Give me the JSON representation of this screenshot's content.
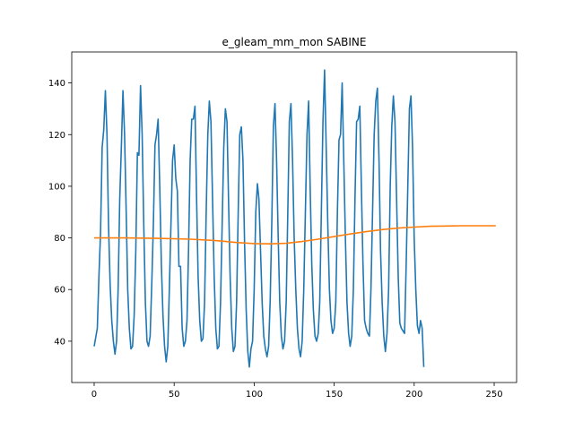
{
  "chart_data": {
    "type": "line",
    "title": "e_gleam_mm_mon SABINE",
    "xlabel": "",
    "ylabel": "",
    "xlim": [
      -14,
      264
    ],
    "ylim": [
      24,
      152
    ],
    "grid": false,
    "legend": "none",
    "x_ticks": [
      0,
      50,
      100,
      150,
      200,
      250
    ],
    "y_ticks": [
      40,
      60,
      80,
      100,
      120,
      140
    ],
    "series": [
      {
        "color": "#1f77b4",
        "points": [
          [
            0,
            38
          ],
          [
            2,
            45
          ],
          [
            3,
            65
          ],
          [
            4,
            82
          ],
          [
            5,
            115
          ],
          [
            6,
            122
          ],
          [
            7,
            137
          ],
          [
            8,
            120
          ],
          [
            9,
            85
          ],
          [
            10,
            62
          ],
          [
            11,
            48
          ],
          [
            12,
            40
          ],
          [
            13,
            35
          ],
          [
            14,
            40
          ],
          [
            15,
            60
          ],
          [
            16,
            95
          ],
          [
            17,
            115
          ],
          [
            18,
            137
          ],
          [
            19,
            120
          ],
          [
            20,
            90
          ],
          [
            21,
            60
          ],
          [
            22,
            45
          ],
          [
            23,
            37
          ],
          [
            24,
            38
          ],
          [
            25,
            50
          ],
          [
            26,
            75
          ],
          [
            27,
            113
          ],
          [
            28,
            112
          ],
          [
            29,
            139
          ],
          [
            30,
            120
          ],
          [
            31,
            85
          ],
          [
            32,
            55
          ],
          [
            33,
            40
          ],
          [
            34,
            38
          ],
          [
            35,
            42
          ],
          [
            36,
            62
          ],
          [
            37,
            85
          ],
          [
            38,
            116
          ],
          [
            39,
            120
          ],
          [
            40,
            126
          ],
          [
            41,
            100
          ],
          [
            42,
            70
          ],
          [
            43,
            50
          ],
          [
            44,
            38
          ],
          [
            45,
            32
          ],
          [
            46,
            38
          ],
          [
            47,
            60
          ],
          [
            48,
            85
          ],
          [
            49,
            110
          ],
          [
            50,
            116
          ],
          [
            51,
            103
          ],
          [
            52,
            98
          ],
          [
            53,
            69
          ],
          [
            54,
            69
          ],
          [
            55,
            45
          ],
          [
            56,
            38
          ],
          [
            57,
            40
          ],
          [
            58,
            48
          ],
          [
            59,
            75
          ],
          [
            60,
            110
          ],
          [
            61,
            126
          ],
          [
            62,
            126
          ],
          [
            63,
            131
          ],
          [
            64,
            95
          ],
          [
            65,
            65
          ],
          [
            66,
            48
          ],
          [
            67,
            40
          ],
          [
            68,
            41
          ],
          [
            69,
            55
          ],
          [
            70,
            90
          ],
          [
            71,
            120
          ],
          [
            72,
            133
          ],
          [
            73,
            125
          ],
          [
            74,
            95
          ],
          [
            75,
            65
          ],
          [
            76,
            45
          ],
          [
            77,
            37
          ],
          [
            78,
            38
          ],
          [
            79,
            55
          ],
          [
            80,
            85
          ],
          [
            81,
            115
          ],
          [
            82,
            130
          ],
          [
            83,
            125
          ],
          [
            84,
            95
          ],
          [
            85,
            65
          ],
          [
            86,
            45
          ],
          [
            87,
            36
          ],
          [
            88,
            38
          ],
          [
            89,
            55
          ],
          [
            90,
            90
          ],
          [
            91,
            120
          ],
          [
            92,
            123
          ],
          [
            93,
            110
          ],
          [
            94,
            78
          ],
          [
            95,
            52
          ],
          [
            96,
            36
          ],
          [
            97,
            30
          ],
          [
            98,
            37
          ],
          [
            99,
            40
          ],
          [
            100,
            60
          ],
          [
            101,
            90
          ],
          [
            102,
            101
          ],
          [
            103,
            95
          ],
          [
            104,
            75
          ],
          [
            105,
            55
          ],
          [
            106,
            42
          ],
          [
            107,
            37
          ],
          [
            108,
            34
          ],
          [
            109,
            38
          ],
          [
            110,
            55
          ],
          [
            111,
            85
          ],
          [
            112,
            123
          ],
          [
            113,
            132
          ],
          [
            114,
            110
          ],
          [
            115,
            80
          ],
          [
            116,
            55
          ],
          [
            117,
            42
          ],
          [
            118,
            37
          ],
          [
            119,
            40
          ],
          [
            120,
            55
          ],
          [
            121,
            90
          ],
          [
            122,
            125
          ],
          [
            123,
            132
          ],
          [
            124,
            110
          ],
          [
            125,
            80
          ],
          [
            126,
            60
          ],
          [
            127,
            45
          ],
          [
            128,
            37
          ],
          [
            129,
            34
          ],
          [
            130,
            40
          ],
          [
            131,
            60
          ],
          [
            132,
            90
          ],
          [
            133,
            120
          ],
          [
            134,
            133
          ],
          [
            135,
            100
          ],
          [
            136,
            70
          ],
          [
            137,
            52
          ],
          [
            138,
            42
          ],
          [
            139,
            40
          ],
          [
            140,
            43
          ],
          [
            141,
            55
          ],
          [
            142,
            90
          ],
          [
            143,
            125
          ],
          [
            144,
            145
          ],
          [
            145,
            115
          ],
          [
            146,
            85
          ],
          [
            147,
            60
          ],
          [
            148,
            48
          ],
          [
            149,
            43
          ],
          [
            150,
            45
          ],
          [
            151,
            55
          ],
          [
            152,
            90
          ],
          [
            153,
            118
          ],
          [
            154,
            120
          ],
          [
            155,
            140
          ],
          [
            156,
            110
          ],
          [
            157,
            80
          ],
          [
            158,
            55
          ],
          [
            159,
            43
          ],
          [
            160,
            38
          ],
          [
            161,
            42
          ],
          [
            162,
            60
          ],
          [
            163,
            95
          ],
          [
            164,
            125
          ],
          [
            165,
            126
          ],
          [
            166,
            131
          ],
          [
            167,
            100
          ],
          [
            168,
            70
          ],
          [
            169,
            48
          ],
          [
            170,
            45
          ],
          [
            171,
            43
          ],
          [
            172,
            42
          ],
          [
            173,
            60
          ],
          [
            174,
            90
          ],
          [
            175,
            120
          ],
          [
            176,
            133
          ],
          [
            177,
            138
          ],
          [
            178,
            110
          ],
          [
            179,
            75
          ],
          [
            180,
            55
          ],
          [
            181,
            42
          ],
          [
            182,
            36
          ],
          [
            183,
            43
          ],
          [
            184,
            60
          ],
          [
            185,
            100
          ],
          [
            186,
            123
          ],
          [
            187,
            135
          ],
          [
            188,
            125
          ],
          [
            189,
            95
          ],
          [
            190,
            65
          ],
          [
            191,
            47
          ],
          [
            192,
            45
          ],
          [
            193,
            44
          ],
          [
            194,
            43
          ],
          [
            195,
            70
          ],
          [
            196,
            100
          ],
          [
            197,
            130
          ],
          [
            198,
            135
          ],
          [
            199,
            115
          ],
          [
            200,
            80
          ],
          [
            201,
            60
          ],
          [
            202,
            46
          ],
          [
            203,
            43
          ],
          [
            204,
            48
          ],
          [
            205,
            45
          ],
          [
            206,
            30
          ]
        ]
      },
      {
        "color": "#ff7f0e",
        "points": [
          [
            0,
            80
          ],
          [
            20,
            80
          ],
          [
            40,
            79.8
          ],
          [
            60,
            79.5
          ],
          [
            75,
            79
          ],
          [
            90,
            78.2
          ],
          [
            100,
            77.8
          ],
          [
            110,
            77.7
          ],
          [
            120,
            77.9
          ],
          [
            130,
            78.6
          ],
          [
            140,
            79.5
          ],
          [
            150,
            80.5
          ],
          [
            160,
            81.5
          ],
          [
            170,
            82.4
          ],
          [
            180,
            83.2
          ],
          [
            190,
            83.8
          ],
          [
            200,
            84.2
          ],
          [
            210,
            84.5
          ],
          [
            220,
            84.6
          ],
          [
            230,
            84.7
          ],
          [
            240,
            84.7
          ],
          [
            251,
            84.7
          ]
        ]
      }
    ]
  }
}
